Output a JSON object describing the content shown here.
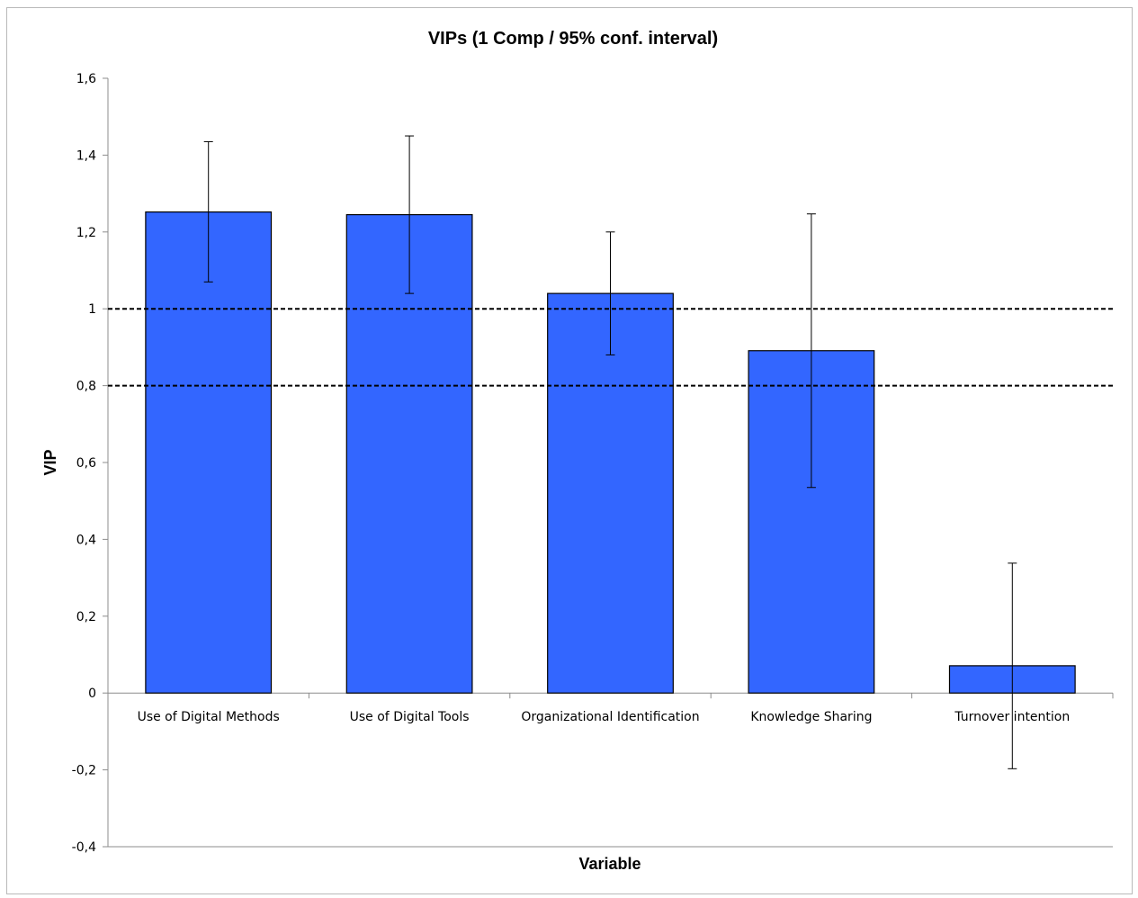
{
  "chart_data": {
    "type": "bar",
    "title": "VIPs (1 Comp / 95% conf. interval)",
    "xlabel": "Variable",
    "ylabel": "VIP",
    "ylim": [
      -0.4,
      1.6
    ],
    "yticks": [
      -0.4,
      -0.2,
      0,
      0.2,
      0.4,
      0.6,
      0.8,
      1,
      1.2,
      1.4,
      1.6
    ],
    "ytick_labels": [
      "-0,4",
      "-0,2",
      "0",
      "0,2",
      "0,4",
      "0,6",
      "0,8",
      "1",
      "1,2",
      "1,4",
      "1,6"
    ],
    "categories": [
      "Use of Digital Methods",
      "Use of Digital Tools",
      "Organizational Identification",
      "Knowledge Sharing",
      "Turnover intention"
    ],
    "values": [
      1.252,
      1.245,
      1.04,
      0.891,
      0.071
    ],
    "error_lower": [
      1.07,
      1.04,
      0.88,
      0.535,
      -0.197
    ],
    "error_upper": [
      1.435,
      1.45,
      1.2,
      1.247,
      0.338
    ],
    "reference_lines": [
      1.0,
      0.8
    ],
    "bar_color": "#3366ff",
    "grid": false
  }
}
